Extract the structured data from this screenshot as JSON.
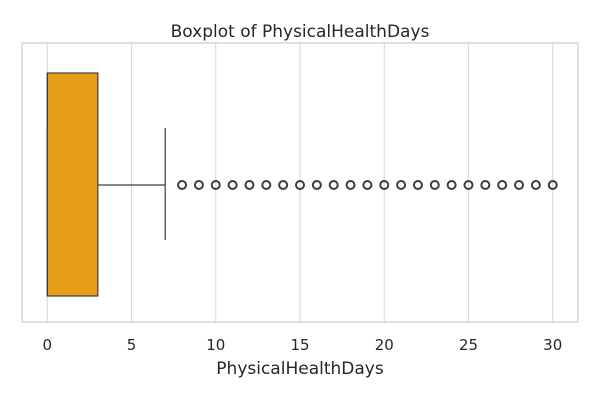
{
  "chart_data": {
    "type": "boxplot",
    "orientation": "horizontal",
    "title": "Boxplot of PhysicalHealthDays",
    "xlabel": "PhysicalHealthDays",
    "ylabel": "",
    "xlim": [
      -1.5,
      31.5
    ],
    "xticks": [
      0,
      5,
      10,
      15,
      20,
      25,
      30
    ],
    "tick_labels": [
      "0",
      "5",
      "10",
      "15",
      "20",
      "25",
      "30"
    ],
    "grid": true,
    "legend": "none",
    "box": {
      "min": 0,
      "q1": 0,
      "median": 0,
      "q3": 3,
      "whisker_low": 0,
      "whisker_high": 7
    },
    "outliers": [
      8,
      9,
      10,
      11,
      12,
      13,
      14,
      15,
      16,
      17,
      18,
      19,
      20,
      21,
      22,
      23,
      24,
      25,
      26,
      27,
      28,
      29,
      30
    ],
    "colors": {
      "box_fill": "#e69e18",
      "edge": "#3d3d3d",
      "grid": "#d9d9d9",
      "frame": "#cccccc"
    }
  }
}
